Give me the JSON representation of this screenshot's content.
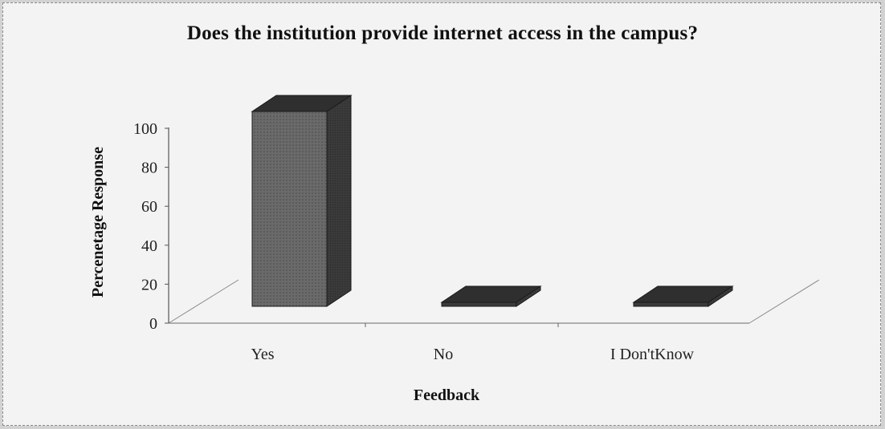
{
  "chart_data": {
    "type": "bar",
    "title": "Does the institution provide internet access in the campus?",
    "xlabel": "Feedback",
    "ylabel": "Percenetage Response",
    "categories": [
      "Yes",
      "No",
      "I Don'tKnow"
    ],
    "values": [
      100,
      0,
      0
    ],
    "ylim": [
      0,
      100
    ],
    "yticks": [
      0,
      20,
      40,
      60,
      80,
      100
    ],
    "ytick_labels": [
      "0",
      "20",
      "40",
      "60",
      "80",
      "100"
    ],
    "grid": false,
    "legend": "none",
    "bar_color": "#5a5a5a"
  }
}
